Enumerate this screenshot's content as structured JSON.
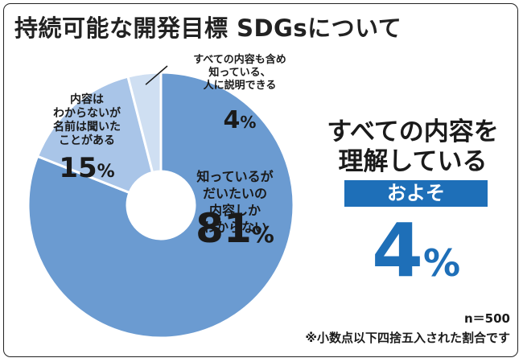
{
  "chart_data": {
    "type": "pie",
    "donut": true,
    "title": "持続可能な開発目標 SDGsについて",
    "start_angle_deg": 0,
    "direction": "clockwise",
    "slices": [
      {
        "label": [
          "知っているが",
          "だいたいの",
          "内容しか",
          "わからない"
        ],
        "value": 81,
        "value_text": "81",
        "unit": "%",
        "color": "#6b9bd1"
      },
      {
        "label": [
          "内容は",
          "わからないが",
          "名前は聞いた",
          "ことがある"
        ],
        "value": 15,
        "value_text": "15",
        "unit": "%",
        "color": "#a9c5e8"
      },
      {
        "label": [
          "すべての内容も含め",
          "知っている、",
          "人に説明できる"
        ],
        "value": 4,
        "value_text": "4",
        "unit": "%",
        "color": "#cfdff2"
      }
    ]
  },
  "callout": {
    "label_lines": [
      "すべての内容を",
      "理解している"
    ],
    "approx": "およそ",
    "value": "4",
    "unit": "%"
  },
  "notes": {
    "n": "n＝500",
    "rounding": "※小数点以下四捨五入された割合です"
  }
}
